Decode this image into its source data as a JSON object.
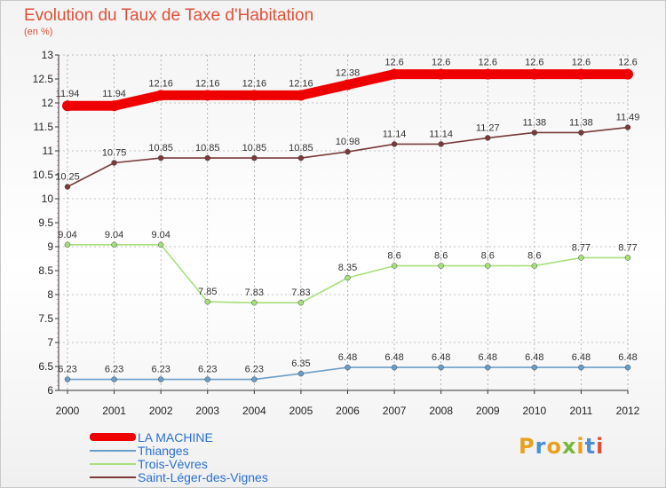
{
  "title": "Evolution du Taux de Taxe d'Habitation",
  "subtitle": "(en %)",
  "logo_text": "Proxiti",
  "colors": {
    "title": "#e05038",
    "legend_text": "#2a6fd0",
    "axis": "#333333",
    "grid": "#888888"
  },
  "chart_data": {
    "type": "line",
    "title": "Evolution du Taux de Taxe d'Habitation",
    "subtitle": "(en %)",
    "xlabel": "",
    "ylabel": "",
    "x": [
      "2000",
      "2001",
      "2002",
      "2003",
      "2004",
      "2005",
      "2006",
      "2007",
      "2008",
      "2009",
      "2010",
      "2011",
      "2012"
    ],
    "ylim": [
      6,
      13
    ],
    "yticks": [
      "6",
      "6.5",
      "7",
      "7.5",
      "8",
      "8.5",
      "9",
      "9.5",
      "10",
      "10.5",
      "11",
      "11.5",
      "12",
      "12.5",
      "13"
    ],
    "grid": "dashed vertical at x ticks, dashed horizontal at y = 6, 7, 8, 9, 10, 11, 12, 13",
    "legend_position": "bottom-left",
    "series": [
      {
        "name": "LA MACHINE",
        "color": "#ee0000",
        "values": [
          11.94,
          11.94,
          12.16,
          12.16,
          12.16,
          12.16,
          12.38,
          12.6,
          12.6,
          12.6,
          12.6,
          12.6,
          12.6
        ],
        "labels": [
          "11.94",
          "11.94",
          "12.16",
          "12.16",
          "12.16",
          "12.16",
          "12.38",
          "12.6",
          "12.6",
          "12.6",
          "12.6",
          "12.6",
          "12.6"
        ]
      },
      {
        "name": "Thianges",
        "color": "#6a9ec8",
        "values": [
          6.23,
          6.23,
          6.23,
          6.23,
          6.23,
          6.35,
          6.48,
          6.48,
          6.48,
          6.48,
          6.48,
          6.48,
          6.48
        ],
        "labels": [
          "6.23",
          "6.23",
          "6.23",
          "6.23",
          "6.23",
          "6.35",
          "6.48",
          "6.48",
          "6.48",
          "6.48",
          "6.48",
          "6.48",
          "6.48"
        ]
      },
      {
        "name": "Trois-Vèvres",
        "color": "#a6e07a",
        "values": [
          9.04,
          9.04,
          9.04,
          7.85,
          7.83,
          7.83,
          8.35,
          8.6,
          8.6,
          8.6,
          8.6,
          8.77,
          8.77
        ],
        "labels": [
          "9.04",
          "9.04",
          "9.04",
          "7.85",
          "7.83",
          "7.83",
          "8.35",
          "8.6",
          "8.6",
          "8.6",
          "8.6",
          "8.77",
          "8.77"
        ]
      },
      {
        "name": "Saint-Léger-des-Vignes",
        "color": "#7a3a3a",
        "values": [
          10.25,
          10.75,
          10.85,
          10.85,
          10.85,
          10.85,
          10.98,
          11.14,
          11.14,
          11.27,
          11.38,
          11.38,
          11.49
        ],
        "labels": [
          "10.25",
          "10.75",
          "10.85",
          "10.85",
          "10.85",
          "10.85",
          "10.98",
          "11.14",
          "11.14",
          "11.27",
          "11.38",
          "11.38",
          "11.49"
        ]
      }
    ]
  }
}
